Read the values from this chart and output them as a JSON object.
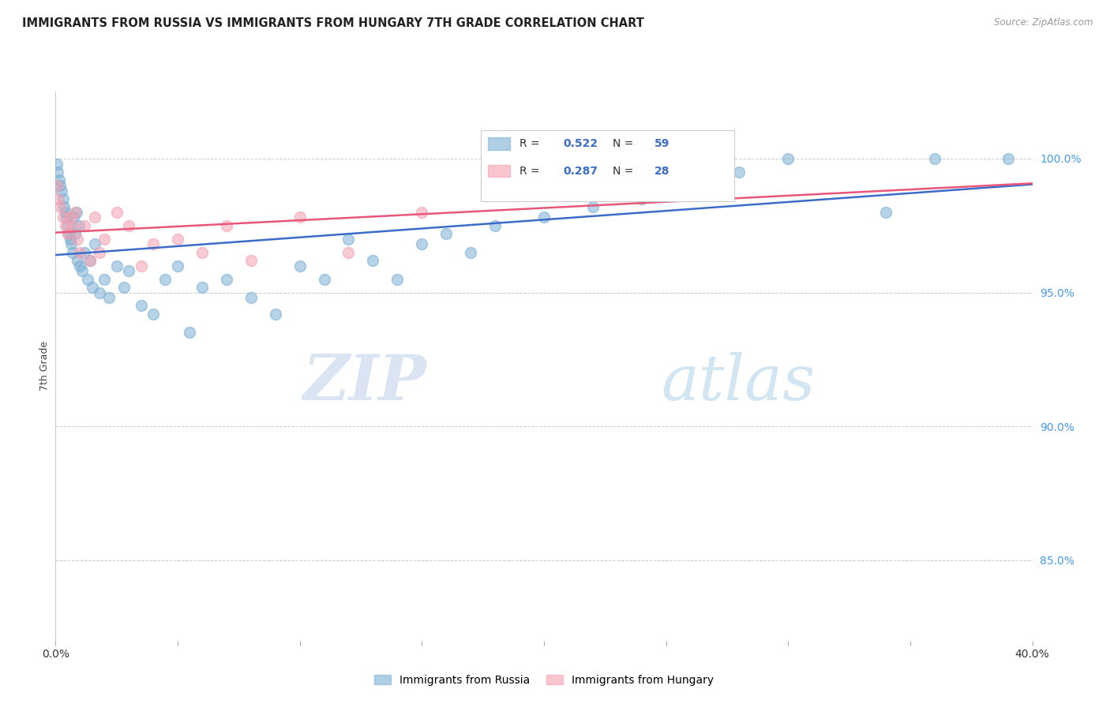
{
  "title": "IMMIGRANTS FROM RUSSIA VS IMMIGRANTS FROM HUNGARY 7TH GRADE CORRELATION CHART",
  "source": "Source: ZipAtlas.com",
  "ylabel": "7th Grade",
  "xlim": [
    0.0,
    40.0
  ],
  "ylim": [
    82.0,
    102.5
  ],
  "xticks": [
    0.0,
    5.0,
    10.0,
    15.0,
    20.0,
    25.0,
    30.0,
    35.0,
    40.0
  ],
  "yticks_right": [
    85.0,
    90.0,
    95.0,
    100.0
  ],
  "ytick_labels_right": [
    "85.0%",
    "90.0%",
    "95.0%",
    "100.0%"
  ],
  "russia_R": 0.522,
  "russia_N": 59,
  "hungary_R": 0.287,
  "hungary_N": 28,
  "russia_color": "#7BAFD4",
  "hungary_color": "#F4A0B0",
  "russia_line_color": "#3B6CC9",
  "hungary_line_color": "#E8567A",
  "russia_x": [
    0.05,
    0.1,
    0.15,
    0.2,
    0.25,
    0.3,
    0.35,
    0.4,
    0.45,
    0.5,
    0.55,
    0.6,
    0.65,
    0.7,
    0.75,
    0.8,
    0.85,
    0.9,
    0.95,
    1.0,
    1.1,
    1.2,
    1.3,
    1.4,
    1.5,
    1.6,
    1.8,
    2.0,
    2.2,
    2.5,
    2.8,
    3.0,
    3.5,
    4.0,
    4.5,
    5.0,
    5.5,
    6.0,
    7.0,
    8.0,
    9.0,
    10.0,
    11.0,
    12.0,
    13.0,
    14.0,
    15.0,
    16.0,
    17.0,
    18.0,
    20.0,
    22.0,
    24.0,
    26.0,
    28.0,
    30.0,
    34.0,
    36.0,
    39.0
  ],
  "russia_y": [
    99.8,
    99.5,
    99.2,
    99.0,
    98.8,
    98.5,
    98.2,
    98.0,
    97.8,
    97.5,
    97.2,
    97.0,
    96.8,
    96.5,
    97.8,
    97.2,
    98.0,
    96.2,
    97.5,
    96.0,
    95.8,
    96.5,
    95.5,
    96.2,
    95.2,
    96.8,
    95.0,
    95.5,
    94.8,
    96.0,
    95.2,
    95.8,
    94.5,
    94.2,
    95.5,
    96.0,
    93.5,
    95.2,
    95.5,
    94.8,
    94.2,
    96.0,
    95.5,
    97.0,
    96.2,
    95.5,
    96.8,
    97.2,
    96.5,
    97.5,
    97.8,
    98.2,
    98.5,
    100.0,
    99.5,
    100.0,
    98.0,
    100.0,
    100.0
  ],
  "hungary_x": [
    0.05,
    0.1,
    0.2,
    0.3,
    0.4,
    0.5,
    0.6,
    0.7,
    0.8,
    0.9,
    1.0,
    1.2,
    1.4,
    1.6,
    1.8,
    2.0,
    2.5,
    3.0,
    3.5,
    4.0,
    5.0,
    6.0,
    7.0,
    8.0,
    10.0,
    12.0,
    15.0,
    25.0
  ],
  "hungary_y": [
    99.0,
    98.5,
    98.2,
    97.8,
    97.5,
    97.2,
    97.8,
    97.5,
    98.0,
    97.0,
    96.5,
    97.5,
    96.2,
    97.8,
    96.5,
    97.0,
    98.0,
    97.5,
    96.0,
    96.8,
    97.0,
    96.5,
    97.5,
    96.2,
    97.8,
    96.5,
    98.0,
    100.0
  ],
  "watermark_zip": "ZIP",
  "watermark_atlas": "atlas",
  "background_color": "#FFFFFF",
  "grid_color": "#CCCCCC",
  "legend_russia": "Immigrants from Russia",
  "legend_hungary": "Immigrants from Hungary"
}
